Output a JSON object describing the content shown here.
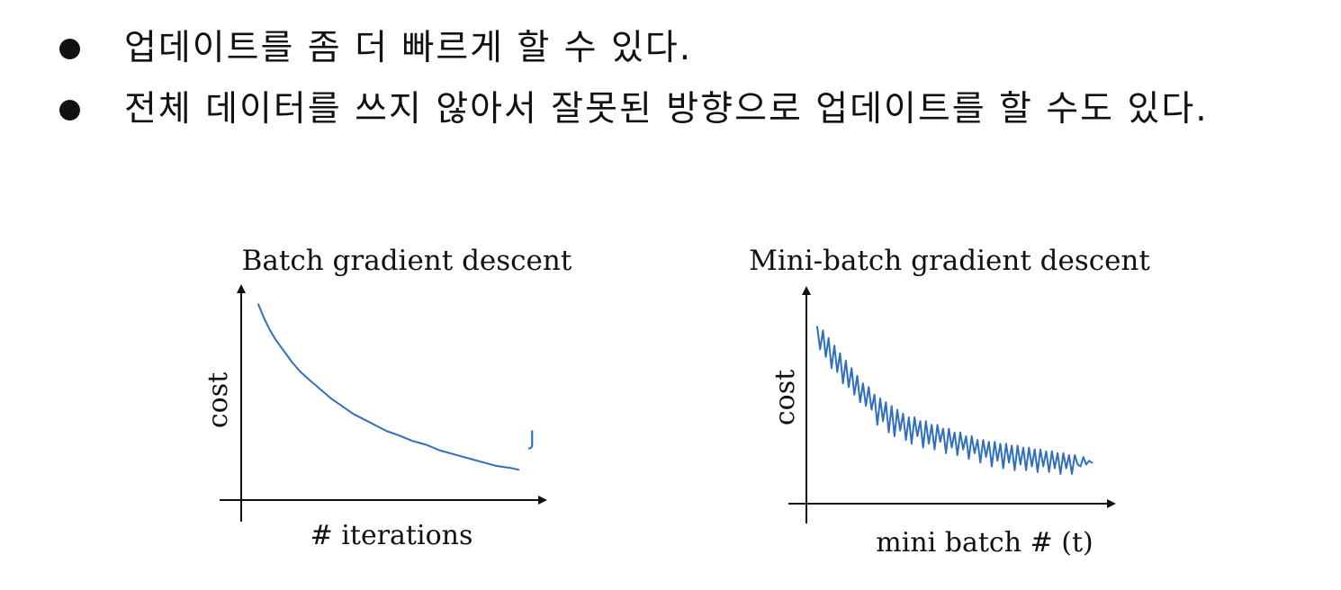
{
  "bullets": [
    "업데이트를 좀 더 빠르게 할 수 있다.",
    "전체 데이터를 쓰지 않아서 잘못된 방향으로 업데이트를 할 수도 있다."
  ],
  "colors": {
    "series": "#2f6fbf",
    "text": "#111111",
    "axis": "#111111"
  },
  "chart_data": [
    {
      "type": "line",
      "title": "Batch gradient descent",
      "xlabel": "# iterations",
      "ylabel": "cost",
      "grid": false,
      "xlim": [
        0,
        100
      ],
      "ylim": [
        0,
        100
      ],
      "annotation": "J",
      "series": [
        {
          "color": "#2f6fbf",
          "x": [
            0,
            2,
            4,
            6,
            8,
            10,
            12,
            15,
            18,
            22,
            26,
            30,
            34,
            38,
            42,
            46,
            50,
            55,
            60,
            65,
            70,
            75,
            80,
            85,
            90,
            93
          ],
          "y": [
            98,
            91,
            85,
            80,
            76,
            72,
            68,
            63,
            59,
            54,
            49,
            45,
            41,
            38,
            35,
            32,
            30,
            27,
            25,
            22,
            20,
            18,
            16,
            14,
            13,
            12
          ]
        }
      ]
    },
    {
      "type": "line",
      "title": "Mini-batch gradient descent",
      "xlabel": "mini batch # (t)",
      "ylabel": "cost",
      "grid": false,
      "xlim": [
        0,
        100
      ],
      "ylim": [
        0,
        100
      ],
      "series": [
        {
          "color": "#2f6fbf",
          "x": [
            0,
            1,
            2,
            3,
            4,
            5,
            6,
            7,
            8,
            9,
            10,
            11,
            12,
            13,
            14,
            15,
            16,
            17,
            18,
            19,
            20,
            21,
            22,
            23,
            24,
            25,
            26,
            27,
            28,
            29,
            30,
            31,
            32,
            33,
            34,
            35,
            36,
            37,
            38,
            39,
            40,
            41,
            42,
            43,
            44,
            45,
            46,
            47,
            48,
            49,
            50,
            51,
            52,
            53,
            54,
            55,
            56,
            57,
            58,
            59,
            60,
            61,
            62,
            63,
            64,
            65,
            66,
            67,
            68,
            69,
            70,
            71,
            72,
            73,
            74,
            75,
            76,
            77,
            78,
            79,
            80,
            81,
            82,
            83,
            84,
            85,
            86,
            87,
            88,
            89,
            90,
            91,
            92,
            93,
            94,
            95,
            96
          ],
          "y": [
            88,
            76,
            86,
            72,
            82,
            66,
            78,
            64,
            74,
            58,
            70,
            56,
            66,
            52,
            62,
            48,
            58,
            46,
            56,
            44,
            52,
            36,
            50,
            38,
            48,
            32,
            46,
            30,
            44,
            33,
            42,
            28,
            40,
            26,
            40,
            30,
            38,
            24,
            38,
            26,
            36,
            23,
            36,
            27,
            34,
            21,
            34,
            24,
            32,
            20,
            32,
            23,
            30,
            18,
            30,
            21,
            28,
            16,
            28,
            19,
            27,
            14,
            27,
            17,
            26,
            13,
            26,
            16,
            25,
            12,
            25,
            15,
            24,
            12,
            24,
            14,
            23,
            11,
            23,
            14,
            22,
            11,
            22,
            13,
            21,
            10,
            21,
            13,
            20,
            10,
            20,
            15,
            14,
            19,
            15,
            17,
            16
          ]
        }
      ]
    }
  ]
}
